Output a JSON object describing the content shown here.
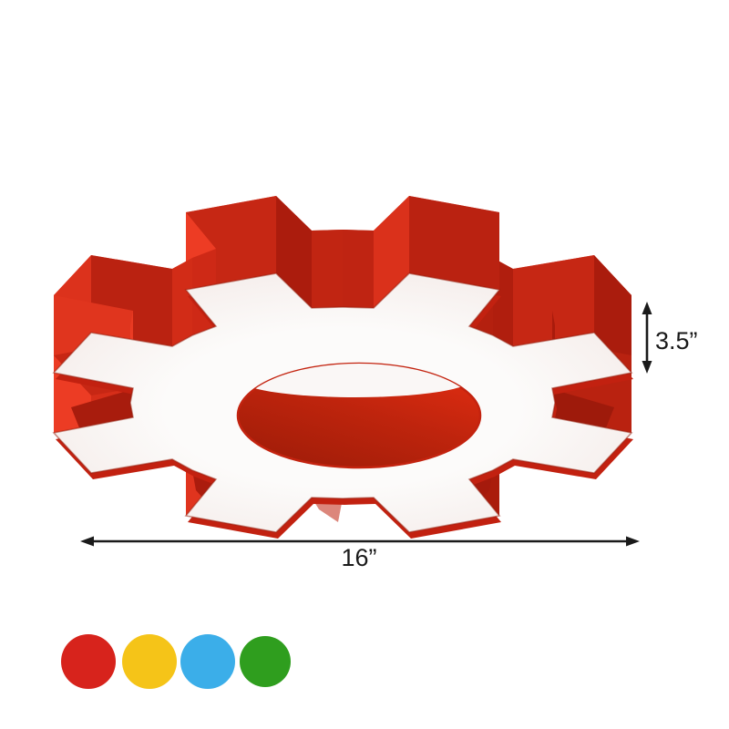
{
  "annotations": {
    "height": "3.5”",
    "width": "16”"
  },
  "swatches": [
    {
      "name": "red",
      "color": "#D7231C"
    },
    {
      "name": "yellow",
      "color": "#F5C418"
    },
    {
      "name": "blue",
      "color": "#3BAEE9"
    },
    {
      "name": "green",
      "color": "#2F9E1E"
    }
  ],
  "gear": {
    "body": "#E22815",
    "underlay": "#C22110",
    "wall_dark": "#A81B0C",
    "wall_mid": "#CF2A16",
    "wall_bright": "#EE3D25",
    "face_center": "#FCFBFA",
    "face_edge": "#F2E7E4",
    "face_stroke": "rgba(148,32,16,0.5)",
    "hole_dark": "#9E1C08",
    "hole_bright": "#DE2C11",
    "hole_rim": "#C3230F",
    "crescent": "#FAF7F6"
  }
}
